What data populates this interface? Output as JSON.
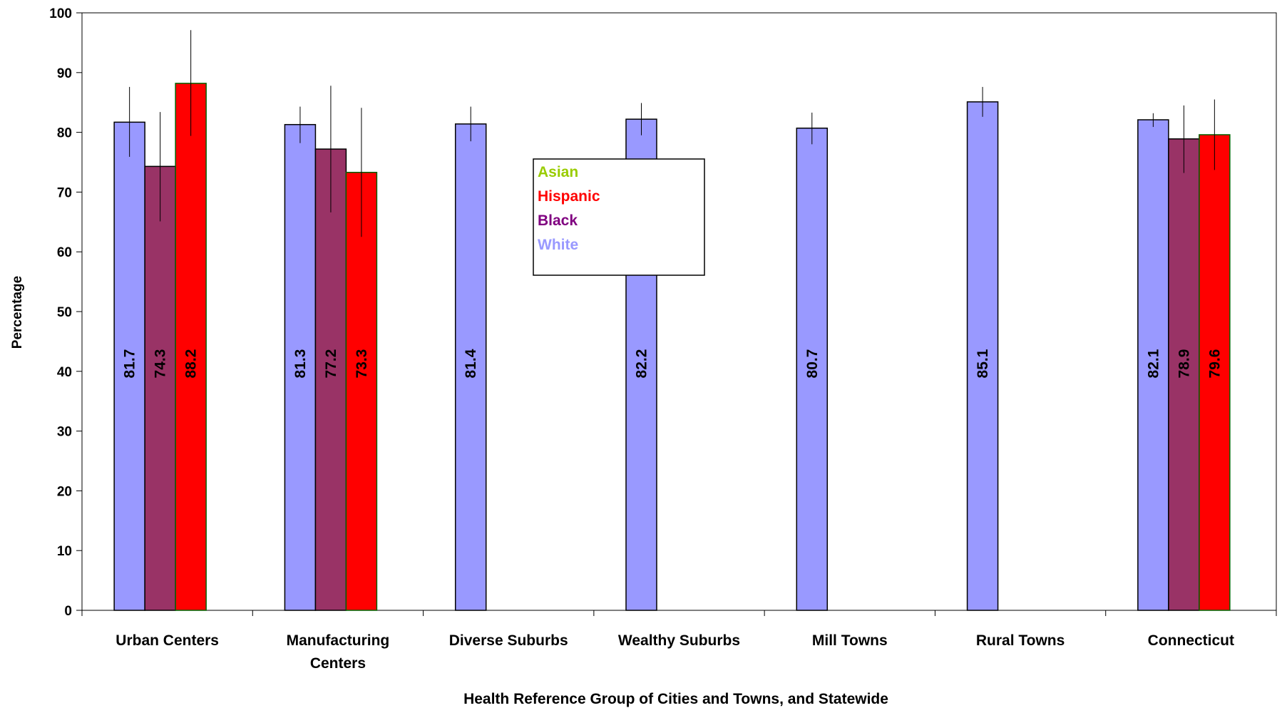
{
  "chart_data": {
    "type": "bar",
    "title": "",
    "xlabel": "Health Reference Group of Cities and Towns, and Statewide",
    "ylabel": "Percentage",
    "ylim": [
      0,
      100
    ],
    "yticks": [
      "0",
      "10",
      "20",
      "30",
      "40",
      "50",
      "60",
      "70",
      "80",
      "90",
      "100"
    ],
    "grid": false,
    "legend_position": "center",
    "categories": [
      {
        "line1": "Urban Centers",
        "line2": ""
      },
      {
        "line1": "Manufacturing",
        "line2": "Centers"
      },
      {
        "line1": "Diverse Suburbs",
        "line2": ""
      },
      {
        "line1": "Wealthy Suburbs",
        "line2": ""
      },
      {
        "line1": "Mill Towns",
        "line2": ""
      },
      {
        "line1": "Rural Towns",
        "line2": ""
      },
      {
        "line1": "Connecticut",
        "line2": ""
      }
    ],
    "series": [
      {
        "name": "White",
        "color": "#9999FF",
        "values": [
          81.7,
          81.3,
          81.4,
          82.2,
          80.7,
          85.1,
          82.1
        ],
        "labels": [
          "81.7",
          "81.3",
          "81.4",
          "82.2",
          "80.7",
          "85.1",
          "82.1"
        ],
        "err_low": [
          75.9,
          78.2,
          78.5,
          79.5,
          78.0,
          82.6,
          80.9
        ],
        "err_high": [
          87.6,
          84.3,
          84.3,
          84.9,
          83.3,
          87.6,
          83.2
        ]
      },
      {
        "name": "Black",
        "color": "#993366",
        "values": [
          74.3,
          77.2,
          null,
          null,
          null,
          null,
          78.9
        ],
        "labels": [
          "74.3",
          "77.2",
          "",
          "",
          "",
          "",
          "78.9"
        ],
        "err_low": [
          65.1,
          66.6,
          null,
          null,
          null,
          null,
          73.2
        ],
        "err_high": [
          83.4,
          87.8,
          null,
          null,
          null,
          null,
          84.5
        ]
      },
      {
        "name": "Hispanic",
        "color": "#FF0000",
        "values": [
          88.2,
          73.3,
          null,
          null,
          null,
          null,
          79.6
        ],
        "labels": [
          "88.2",
          "73.3",
          "",
          "",
          "",
          "",
          "79.6"
        ],
        "err_low": [
          79.4,
          62.5,
          null,
          null,
          null,
          null,
          73.7
        ],
        "err_high": [
          97.1,
          84.1,
          null,
          null,
          null,
          null,
          85.5
        ]
      },
      {
        "name": "Asian",
        "color": "#99CC00",
        "values": [
          null,
          null,
          null,
          null,
          null,
          null,
          null
        ],
        "labels": [
          "",
          "",
          "",
          "",
          "",
          "",
          ""
        ]
      }
    ],
    "legend": [
      {
        "label": "Asian",
        "color": "#99CC00"
      },
      {
        "label": "Hispanic",
        "color": "#FF0000"
      },
      {
        "label": "Black",
        "color": "#800080"
      },
      {
        "label": "White",
        "color": "#9999FF"
      }
    ]
  }
}
